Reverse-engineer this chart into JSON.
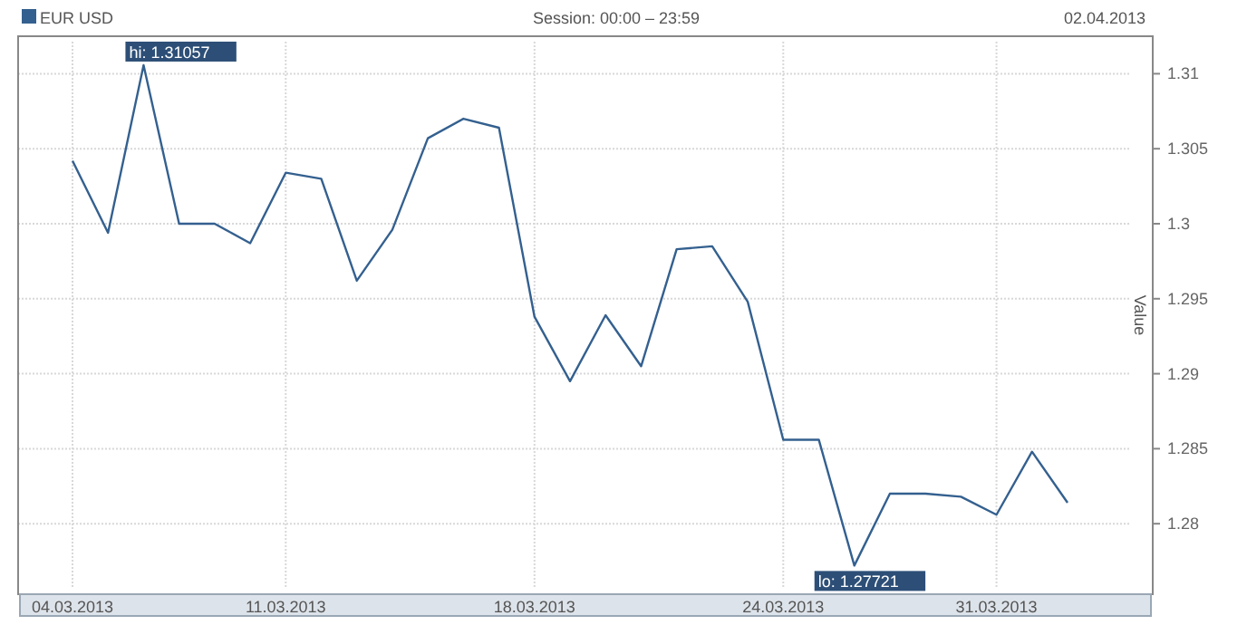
{
  "chart_data": {
    "type": "line",
    "subtitle": "Session: 00:00 – 23:59",
    "ylabel": "Value",
    "annotations": [
      "02.04.2013",
      "hi: 1.31057",
      "lo: 1.27721"
    ],
    "categories": [
      "04.03.2013",
      null,
      null,
      null,
      null,
      null,
      "11.03.2013",
      null,
      null,
      null,
      null,
      null,
      null,
      "18.03.2013",
      null,
      null,
      null,
      null,
      null,
      null,
      "24.03.2013",
      null,
      null,
      null,
      null,
      null,
      "31.03.2013",
      null,
      null
    ],
    "series": [
      {
        "name": "EUR USD",
        "color": "#34608f",
        "values": [
          1.3042,
          1.2994,
          1.31057,
          1.3,
          1.3,
          1.2987,
          1.3034,
          1.303,
          1.2962,
          1.2996,
          1.3057,
          1.307,
          1.3064,
          1.2938,
          1.2895,
          1.2939,
          1.2905,
          1.2983,
          1.2985,
          1.2948,
          1.2856,
          1.2856,
          1.27721,
          1.282,
          1.282,
          1.2818,
          1.2806,
          1.2848,
          1.2814
        ]
      }
    ],
    "ylim": [
      1.2753,
      1.3125
    ],
    "yticks": [
      1.28,
      1.285,
      1.29,
      1.295,
      1.3,
      1.305,
      1.31
    ],
    "grid": true,
    "legend": "top left",
    "line_style": "solid"
  }
}
